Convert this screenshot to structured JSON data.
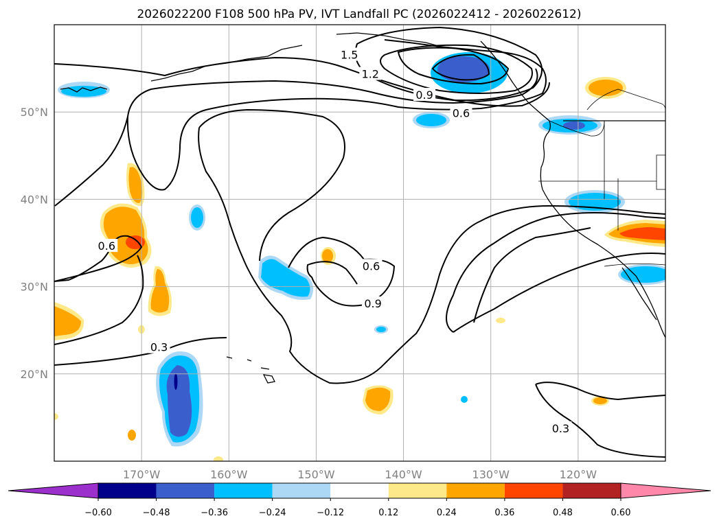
{
  "chart_data": {
    "type": "contour-map",
    "title": "2026022200 F108 500 hPa PV, IVT Landfall PC (2026022412 - 2026022612)",
    "lon_range": [
      -180,
      -110
    ],
    "lat_range": [
      10,
      60
    ],
    "x_ticks": [
      {
        "lon": -170,
        "label": "170°W"
      },
      {
        "lon": -160,
        "label": "160°W"
      },
      {
        "lon": -150,
        "label": "150°W"
      },
      {
        "lon": -140,
        "label": "140°W"
      },
      {
        "lon": -130,
        "label": "130°W"
      },
      {
        "lon": -120,
        "label": "120°W"
      }
    ],
    "y_ticks": [
      {
        "lat": 50,
        "label": "50°N"
      },
      {
        "lat": 40,
        "label": "40°N"
      },
      {
        "lat": 30,
        "label": "30°N"
      },
      {
        "lat": 20,
        "label": "20°N"
      }
    ],
    "colorbar": {
      "levels": [
        -0.6,
        -0.48,
        -0.36,
        -0.24,
        -0.12,
        0.12,
        0.24,
        0.36,
        0.48,
        0.6
      ],
      "labels": [
        "−0.60",
        "−0.48",
        "−0.36",
        "−0.24",
        "−0.12",
        "0.12",
        "0.24",
        "0.36",
        "0.48",
        "0.60"
      ],
      "colors": [
        "#9b30cc",
        "#00008b",
        "#3a5fcd",
        "#00bfff",
        "#add8f5",
        "#ffffff",
        "#fde98a",
        "#ffa500",
        "#ff4500",
        "#b22222",
        "#ff88aa"
      ]
    },
    "contour_labels": [
      {
        "text": "1.5",
        "lon": -146.2,
        "lat": 56.5
      },
      {
        "text": "1.2",
        "lon": -143.8,
        "lat": 54.3
      },
      {
        "text": "0.9",
        "lon": -137.6,
        "lat": 51.9
      },
      {
        "text": "0.6",
        "lon": -133.4,
        "lat": 49.8
      },
      {
        "text": "0.6",
        "lon": -174.0,
        "lat": 34.6
      },
      {
        "text": "0.6",
        "lon": -143.7,
        "lat": 32.3
      },
      {
        "text": "0.9",
        "lon": -143.5,
        "lat": 28.0
      },
      {
        "text": "0.3",
        "lon": -168.0,
        "lat": 23.0
      },
      {
        "text": "0.3",
        "lon": -122.0,
        "lat": 13.7
      }
    ]
  }
}
